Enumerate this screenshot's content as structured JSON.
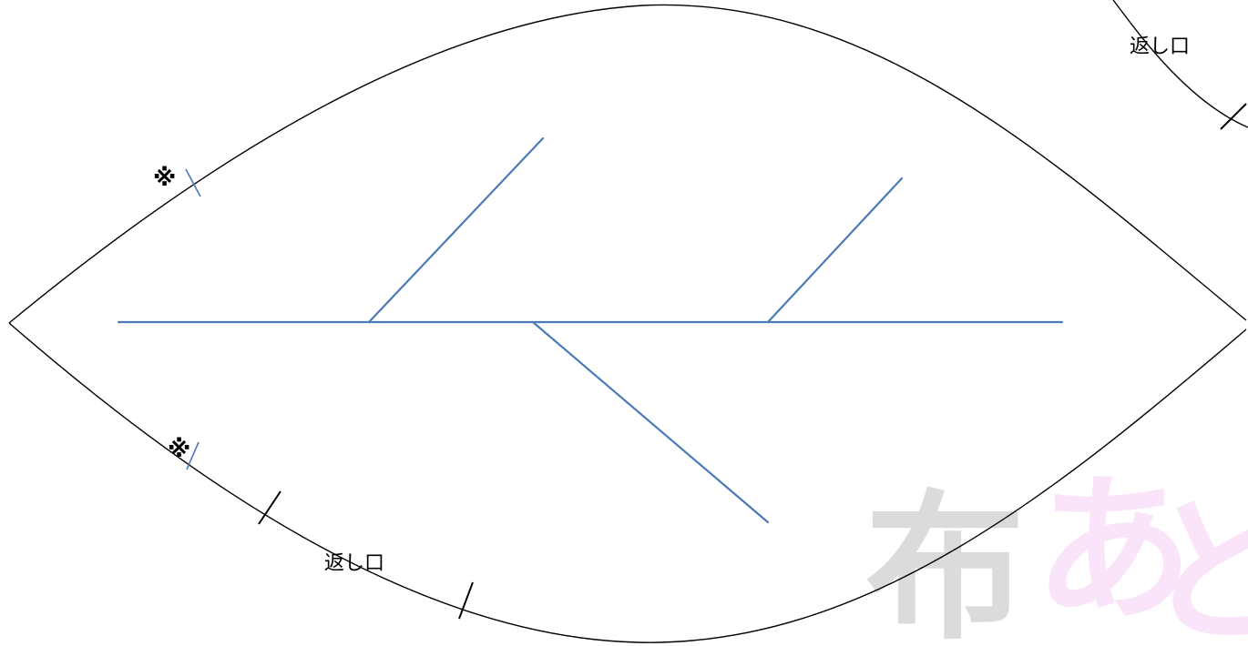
{
  "labels": {
    "opening_top_right": "返し口",
    "opening_bottom": "返し口",
    "match_mark_top": "※",
    "match_mark_bottom": "※"
  },
  "watermark": {
    "text_1": "布",
    "text_2": "あ",
    "text_3": "と"
  },
  "colors": {
    "outline": "#000000",
    "vein": "#4a7ab8",
    "watermark_gray": "#9a9a9a",
    "watermark_pink": "#f3b3f0"
  }
}
